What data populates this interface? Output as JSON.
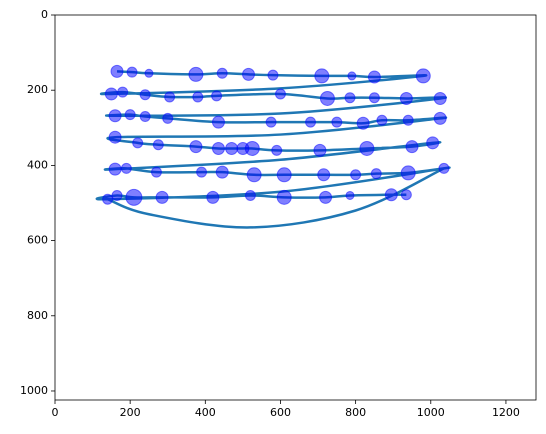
{
  "chart_data": {
    "type": "scatter",
    "xlim": [
      0,
      1280
    ],
    "ylim": [
      1024,
      0
    ],
    "xticks": [
      0,
      200,
      400,
      600,
      800,
      1000,
      1200
    ],
    "yticks": [
      0,
      200,
      400,
      600,
      800,
      1000
    ],
    "color": "#0000ff",
    "line_color": "#1f77b4",
    "x": [
      165,
      205,
      250,
      375,
      445,
      515,
      580,
      710,
      790,
      850,
      980,
      150,
      180,
      240,
      305,
      380,
      430,
      600,
      725,
      785,
      850,
      935,
      1025,
      160,
      200,
      240,
      300,
      435,
      575,
      680,
      750,
      820,
      870,
      940,
      1025,
      160,
      220,
      275,
      375,
      435,
      470,
      500,
      525,
      590,
      705,
      830,
      950,
      1005,
      160,
      190,
      270,
      390,
      445,
      530,
      610,
      715,
      800,
      855,
      940,
      1035,
      140,
      165,
      210,
      285,
      420,
      520,
      610,
      720,
      785,
      895,
      935
    ],
    "y": [
      150,
      152,
      155,
      158,
      155,
      158,
      160,
      162,
      162,
      165,
      162,
      210,
      205,
      212,
      218,
      218,
      215,
      210,
      222,
      220,
      220,
      222,
      222,
      268,
      265,
      270,
      275,
      285,
      285,
      285,
      285,
      288,
      280,
      280,
      275,
      325,
      340,
      345,
      350,
      355,
      355,
      355,
      355,
      360,
      360,
      355,
      350,
      340,
      410,
      408,
      418,
      418,
      418,
      425,
      425,
      425,
      425,
      422,
      420,
      408,
      490,
      480,
      485,
      485,
      485,
      480,
      485,
      485,
      480,
      478,
      478
    ],
    "sizes": [
      6,
      5,
      4,
      7,
      5,
      6,
      5,
      7,
      4,
      6,
      7,
      6,
      5,
      5,
      5,
      5,
      5,
      5,
      7,
      5,
      5,
      6,
      6,
      6,
      5,
      5,
      5,
      6,
      5,
      5,
      5,
      6,
      5,
      5,
      6,
      6,
      5,
      5,
      6,
      6,
      6,
      6,
      7,
      5,
      6,
      7,
      6,
      6,
      6,
      5,
      5,
      5,
      6,
      7,
      7,
      6,
      5,
      5,
      7,
      5,
      5,
      5,
      8,
      6,
      6,
      5,
      7,
      6,
      4,
      6,
      5
    ],
    "path": {
      "x": [
        165,
        205,
        250,
        375,
        445,
        515,
        580,
        710,
        790,
        850,
        980,
        600,
        150,
        180,
        240,
        305,
        380,
        430,
        600,
        725,
        785,
        850,
        935,
        1025,
        600,
        160,
        200,
        240,
        300,
        435,
        575,
        680,
        750,
        820,
        870,
        940,
        1025,
        600,
        160,
        220,
        275,
        375,
        435,
        470,
        500,
        525,
        590,
        705,
        830,
        950,
        1005,
        600,
        160,
        190,
        270,
        390,
        445,
        530,
        610,
        715,
        800,
        855,
        940,
        1035,
        600,
        140,
        165,
        210,
        285,
        420,
        520,
        610,
        720,
        785,
        895,
        935,
        null,
        1035,
        800,
        520,
        250,
        140
      ],
      "y": [
        150,
        152,
        155,
        158,
        155,
        158,
        160,
        162,
        162,
        165,
        162,
        195,
        210,
        205,
        212,
        218,
        218,
        215,
        210,
        222,
        220,
        220,
        222,
        222,
        262,
        268,
        265,
        270,
        275,
        285,
        285,
        285,
        285,
        288,
        280,
        280,
        275,
        318,
        325,
        340,
        345,
        350,
        355,
        355,
        355,
        355,
        360,
        360,
        355,
        350,
        340,
        385,
        410,
        408,
        418,
        418,
        418,
        425,
        425,
        425,
        425,
        422,
        420,
        408,
        470,
        490,
        480,
        485,
        485,
        485,
        480,
        485,
        485,
        480,
        478,
        478,
        null,
        408,
        520,
        565,
        530,
        490
      ]
    }
  }
}
